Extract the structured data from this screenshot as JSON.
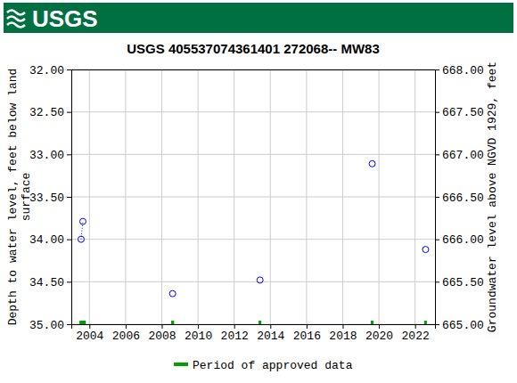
{
  "chart_data": {
    "type": "scatter",
    "header": "USGS",
    "title": "USGS 405537074361401 272068-- MW83",
    "ylabel": [
      "Depth to water level, feet below land",
      "surface"
    ],
    "y2label": "Groundwater level above NGVD 1929, feet",
    "xlim": [
      2003.0,
      2023.1
    ],
    "xticks": [
      2004,
      2006,
      2008,
      2010,
      2012,
      2014,
      2016,
      2018,
      2020,
      2022
    ],
    "ylim": [
      32,
      35
    ],
    "yticks": [
      {
        "value": 32,
        "label": "32.00"
      },
      {
        "value": 32.5,
        "label": "32.50"
      },
      {
        "value": 33,
        "label": "33.00"
      },
      {
        "value": 33.5,
        "label": "33.50"
      },
      {
        "value": 34,
        "label": "34.00"
      },
      {
        "value": 34.5,
        "label": "34.50"
      },
      {
        "value": 35,
        "label": "35.00"
      }
    ],
    "y2lim": [
      668,
      665
    ],
    "y2ticks": [
      {
        "value": 668,
        "label": "668.00"
      },
      {
        "value": 667.5,
        "label": "667.50"
      },
      {
        "value": 667,
        "label": "667.00"
      },
      {
        "value": 666.5,
        "label": "666.50"
      },
      {
        "value": 666,
        "label": "666.00"
      },
      {
        "value": 665.5,
        "label": "665.50"
      },
      {
        "value": 665,
        "label": "665.00"
      }
    ],
    "grid": true,
    "legend": "bottom",
    "x": [
      2003.54,
      2003.64,
      null,
      2008.6,
      null,
      2013.43,
      null,
      2019.63,
      null,
      2022.58
    ],
    "series": [
      {
        "color": "#0000ff",
        "marker": "open-circle",
        "line_style": "dotted",
        "values": [
          34.0,
          33.79,
          null,
          34.64,
          null,
          34.48,
          null,
          33.11,
          null,
          34.12
        ]
      }
    ],
    "approved_periods": {
      "name": "Period of approved data",
      "color": "#00a000",
      "start": [
        2003.45,
        2008.52,
        2013.35,
        2019.55,
        2022.5
      ],
      "end": [
        2003.8,
        2008.68,
        2013.5,
        2019.7,
        2022.65
      ]
    }
  }
}
